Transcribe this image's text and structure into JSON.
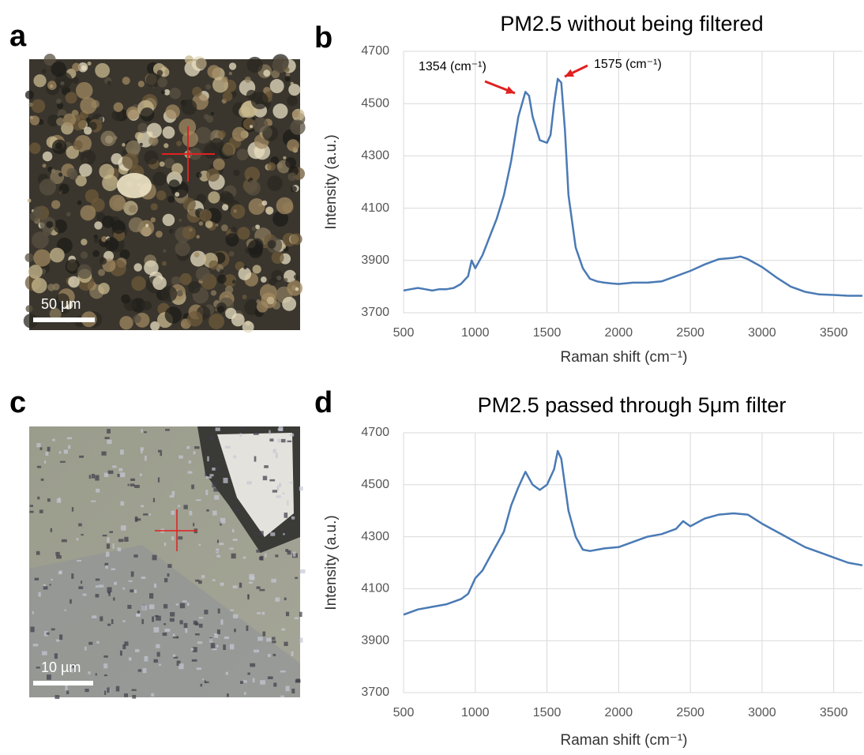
{
  "panel_labels": [
    "a",
    "b",
    "c",
    "d"
  ],
  "scale_bars": [
    "50 µm",
    "10 µm"
  ],
  "chart_data": [
    {
      "type": "line",
      "title": "PM2.5 without being filtered",
      "x_label": "Raman shift (cm⁻¹)",
      "y_label": "Intensity (a.u.)",
      "annotations": [
        "1354 (cm⁻¹)",
        "1575 (cm⁻¹)"
      ],
      "x": [
        500,
        550,
        600,
        650,
        700,
        750,
        800,
        850,
        900,
        950,
        975,
        1000,
        1050,
        1100,
        1150,
        1200,
        1250,
        1300,
        1350,
        1375,
        1400,
        1450,
        1500,
        1525,
        1550,
        1575,
        1600,
        1625,
        1650,
        1700,
        1750,
        1800,
        1850,
        1900,
        1950,
        2000,
        2100,
        2200,
        2300,
        2400,
        2500,
        2600,
        2700,
        2800,
        2850,
        2900,
        3000,
        3100,
        3200,
        3300,
        3400,
        3500,
        3600,
        3700
      ],
      "series": [
        {
          "color": "#4a7ab5",
          "values": [
            3785,
            3790,
            3795,
            3790,
            3785,
            3790,
            3790,
            3795,
            3810,
            3840,
            3900,
            3870,
            3920,
            3990,
            4060,
            4150,
            4280,
            4450,
            4545,
            4530,
            4450,
            4360,
            4350,
            4380,
            4500,
            4595,
            4580,
            4400,
            4150,
            3950,
            3870,
            3830,
            3820,
            3815,
            3812,
            3810,
            3815,
            3815,
            3820,
            3840,
            3860,
            3885,
            3905,
            3910,
            3915,
            3905,
            3875,
            3835,
            3800,
            3780,
            3770,
            3768,
            3765,
            3765
          ]
        }
      ],
      "xlim": [
        500,
        3700
      ],
      "ylim": [
        3700,
        4700
      ],
      "xticks": [
        500,
        1000,
        1500,
        2000,
        2500,
        3000,
        3500
      ],
      "yticks": [
        3700,
        3900,
        4100,
        4300,
        4500,
        4700
      ],
      "grid": true
    },
    {
      "type": "line",
      "title": "PM2.5 passed through 5μm filter",
      "x_label": "Raman shift (cm⁻¹)",
      "y_label": "Intensity (a.u.)",
      "annotations": [],
      "x": [
        500,
        600,
        700,
        800,
        900,
        950,
        1000,
        1050,
        1100,
        1150,
        1200,
        1250,
        1300,
        1350,
        1400,
        1450,
        1500,
        1550,
        1575,
        1600,
        1650,
        1700,
        1750,
        1800,
        1900,
        2000,
        2100,
        2200,
        2300,
        2400,
        2450,
        2500,
        2600,
        2700,
        2800,
        2900,
        3000,
        3100,
        3200,
        3300,
        3400,
        3500,
        3600,
        3700
      ],
      "series": [
        {
          "color": "#4a7ab5",
          "values": [
            4000,
            4020,
            4030,
            4040,
            4060,
            4080,
            4140,
            4170,
            4220,
            4270,
            4320,
            4420,
            4490,
            4550,
            4500,
            4480,
            4500,
            4560,
            4630,
            4600,
            4400,
            4300,
            4250,
            4245,
            4255,
            4260,
            4280,
            4300,
            4310,
            4330,
            4360,
            4340,
            4370,
            4385,
            4390,
            4385,
            4350,
            4320,
            4290,
            4260,
            4240,
            4220,
            4200,
            4190
          ]
        }
      ],
      "xlim": [
        500,
        3700
      ],
      "ylim": [
        3700,
        4700
      ],
      "xticks": [
        500,
        1000,
        1500,
        2000,
        2500,
        3000,
        3500
      ],
      "yticks": [
        3700,
        3900,
        4100,
        4300,
        4500,
        4700
      ],
      "grid": true
    }
  ]
}
